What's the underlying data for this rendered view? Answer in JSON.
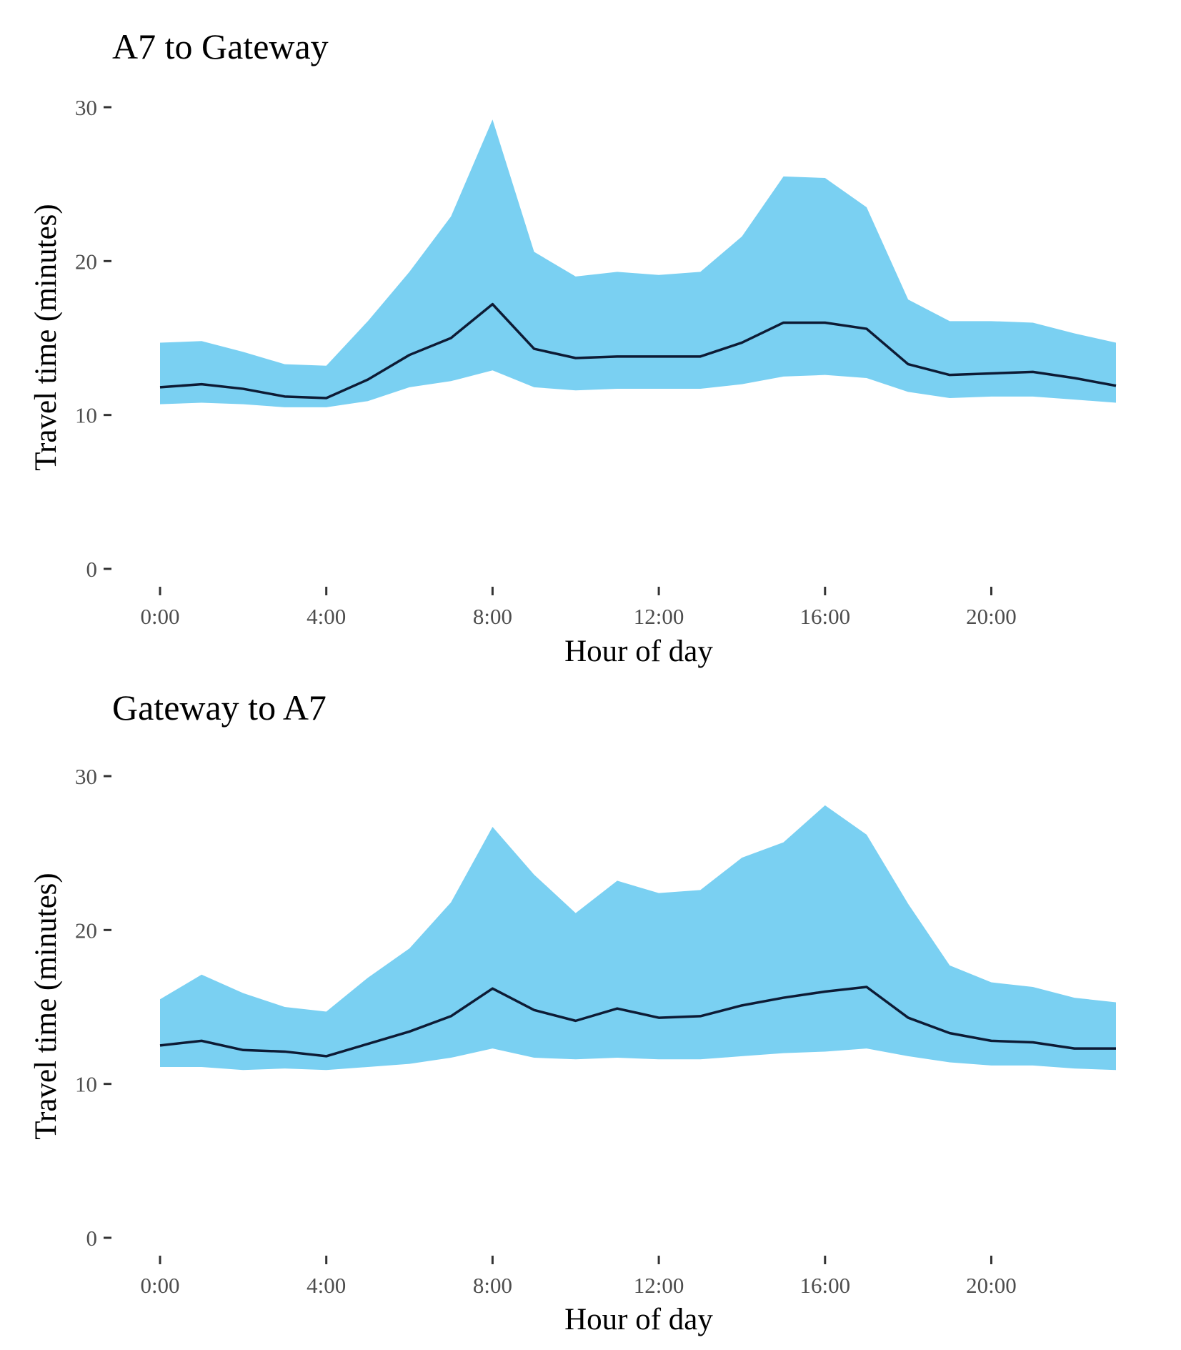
{
  "chart_data": [
    {
      "type": "area",
      "title": "A7 to Gateway",
      "xlabel": "Hour of day",
      "ylabel": "Travel time (minutes)",
      "xlim": [
        0,
        23
      ],
      "ylim": [
        0,
        30
      ],
      "x_ticks": [
        0,
        4,
        8,
        12,
        16,
        20
      ],
      "x_tick_labels": [
        "0:00",
        "4:00",
        "8:00",
        "12:00",
        "16:00",
        "20:00"
      ],
      "y_ticks": [
        0,
        10,
        20,
        30
      ],
      "y_tick_labels": [
        "0",
        "10",
        "20",
        "30"
      ],
      "grid": false,
      "band_color": "#7ad0f2",
      "line_color": "#0d1b35",
      "x": [
        0,
        1,
        2,
        3,
        4,
        5,
        6,
        7,
        8,
        9,
        10,
        11,
        12,
        13,
        14,
        15,
        16,
        17,
        18,
        19,
        20,
        21,
        22,
        23
      ],
      "series": [
        {
          "role": "upper",
          "values": [
            14.7,
            14.8,
            14.1,
            13.3,
            13.2,
            16.1,
            19.3,
            22.9,
            29.2,
            20.6,
            19.0,
            19.3,
            19.1,
            19.3,
            21.6,
            25.5,
            25.4,
            23.5,
            17.5,
            16.1,
            16.1,
            16.0,
            15.3,
            14.7
          ]
        },
        {
          "role": "median",
          "values": [
            11.8,
            12.0,
            11.7,
            11.2,
            11.1,
            12.3,
            13.9,
            15.0,
            17.2,
            14.3,
            13.7,
            13.8,
            13.8,
            13.8,
            14.7,
            16.0,
            16.0,
            15.6,
            13.3,
            12.6,
            12.7,
            12.8,
            12.4,
            11.9
          ]
        },
        {
          "role": "lower",
          "values": [
            10.7,
            10.8,
            10.7,
            10.5,
            10.5,
            10.9,
            11.8,
            12.2,
            12.9,
            11.8,
            11.6,
            11.7,
            11.7,
            11.7,
            12.0,
            12.5,
            12.6,
            12.4,
            11.5,
            11.1,
            11.2,
            11.2,
            11.0,
            10.8
          ]
        }
      ]
    },
    {
      "type": "area",
      "title": "Gateway to A7",
      "xlabel": "Hour of day",
      "ylabel": "Travel time (minutes)",
      "xlim": [
        0,
        23
      ],
      "ylim": [
        0,
        30
      ],
      "x_ticks": [
        0,
        4,
        8,
        12,
        16,
        20
      ],
      "x_tick_labels": [
        "0:00",
        "4:00",
        "8:00",
        "12:00",
        "16:00",
        "20:00"
      ],
      "y_ticks": [
        0,
        10,
        20,
        30
      ],
      "y_tick_labels": [
        "0",
        "10",
        "20",
        "30"
      ],
      "grid": false,
      "band_color": "#7ad0f2",
      "line_color": "#0d1b35",
      "x": [
        0,
        1,
        2,
        3,
        4,
        5,
        6,
        7,
        8,
        9,
        10,
        11,
        12,
        13,
        14,
        15,
        16,
        17,
        18,
        19,
        20,
        21,
        22,
        23
      ],
      "series": [
        {
          "role": "upper",
          "values": [
            15.5,
            17.1,
            15.9,
            15.0,
            14.7,
            16.9,
            18.8,
            21.8,
            26.7,
            23.6,
            21.1,
            23.2,
            22.4,
            22.6,
            24.7,
            25.7,
            28.1,
            26.2,
            21.7,
            17.7,
            16.6,
            16.3,
            15.6,
            15.3
          ]
        },
        {
          "role": "median",
          "values": [
            12.5,
            12.8,
            12.2,
            12.1,
            11.8,
            12.6,
            13.4,
            14.4,
            16.2,
            14.8,
            14.1,
            14.9,
            14.3,
            14.4,
            15.1,
            15.6,
            16.0,
            16.3,
            14.3,
            13.3,
            12.8,
            12.7,
            12.3,
            12.3
          ]
        },
        {
          "role": "lower",
          "values": [
            11.1,
            11.1,
            10.9,
            11.0,
            10.9,
            11.1,
            11.3,
            11.7,
            12.3,
            11.7,
            11.6,
            11.7,
            11.6,
            11.6,
            11.8,
            12.0,
            12.1,
            12.3,
            11.8,
            11.4,
            11.2,
            11.2,
            11.0,
            10.9
          ]
        }
      ]
    }
  ]
}
